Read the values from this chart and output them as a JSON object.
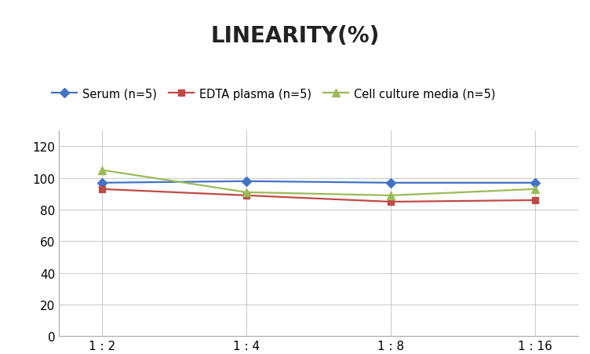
{
  "title": "LINEARITY(%)",
  "x_labels": [
    "1 : 2",
    "1 : 4",
    "1 : 8",
    "1 : 16"
  ],
  "series": [
    {
      "label": "Serum (n=5)",
      "values": [
        97,
        98,
        97,
        97
      ],
      "color": "#4472C4",
      "marker": "D",
      "markersize": 6,
      "linewidth": 1.6
    },
    {
      "label": "EDTA plasma (n=5)",
      "values": [
        93,
        89,
        85,
        86
      ],
      "color": "#BE4B48",
      "marker": "s",
      "markersize": 6,
      "linewidth": 1.6
    },
    {
      "label": "Cell culture media (n=5)",
      "values": [
        105,
        91,
        89,
        93
      ],
      "color": "#9BBB59",
      "marker": "^",
      "markersize": 7,
      "linewidth": 1.6
    }
  ],
  "ylim": [
    0,
    130
  ],
  "yticks": [
    0,
    20,
    40,
    60,
    80,
    100,
    120
  ],
  "title_fontsize": 20,
  "title_fontweight": "bold",
  "legend_fontsize": 10.5,
  "tick_fontsize": 11,
  "background_color": "#ffffff",
  "grid_color": "#c8c8c8",
  "grid_alpha": 0.9
}
